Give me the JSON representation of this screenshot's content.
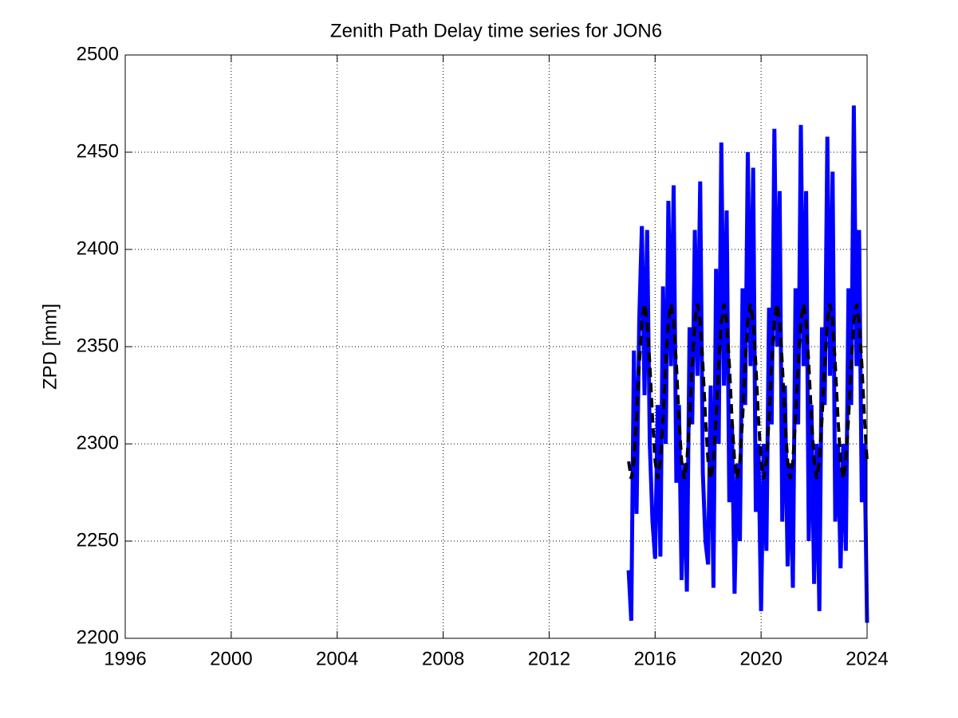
{
  "chart_data": {
    "type": "line",
    "title": "Zenith Path Delay time series for JON6",
    "y_label": "ZPD [mm]",
    "x": [
      2015.0,
      2015.1,
      2015.2,
      2015.3,
      2015.4,
      2015.5,
      2015.6,
      2015.7,
      2015.8,
      2015.9,
      2016.0,
      2016.1,
      2016.2,
      2016.3,
      2016.4,
      2016.5,
      2016.6,
      2016.7,
      2016.8,
      2016.9,
      2017.0,
      2017.1,
      2017.2,
      2017.3,
      2017.4,
      2017.5,
      2017.6,
      2017.7,
      2017.8,
      2017.9,
      2018.0,
      2018.1,
      2018.2,
      2018.3,
      2018.4,
      2018.5,
      2018.6,
      2018.7,
      2018.8,
      2018.9,
      2019.0,
      2019.1,
      2019.2,
      2019.3,
      2019.4,
      2019.5,
      2019.6,
      2019.7,
      2019.8,
      2019.9,
      2020.0,
      2020.1,
      2020.2,
      2020.3,
      2020.4,
      2020.5,
      2020.6,
      2020.7,
      2020.8,
      2020.9,
      2021.0,
      2021.1,
      2021.2,
      2021.3,
      2021.4,
      2021.5,
      2021.6,
      2021.7,
      2021.8,
      2021.9,
      2022.0,
      2022.1,
      2022.2,
      2022.3,
      2022.4,
      2022.5,
      2022.6,
      2022.7,
      2022.8,
      2022.9,
      2023.0,
      2023.1,
      2023.2,
      2023.3,
      2023.4,
      2023.5,
      2023.6,
      2023.7,
      2023.8,
      2023.9,
      2024.0
    ],
    "series": [
      {
        "color": "#0000ff",
        "style": "solid",
        "width": 5,
        "values": [
          2235,
          2209,
          2348,
          2264,
          2364,
          2412,
          2325,
          2410,
          2300,
          2260,
          2241,
          2320,
          2242,
          2381,
          2300,
          2425,
          2340,
          2433,
          2280,
          2320,
          2230,
          2290,
          2224,
          2360,
          2310,
          2410,
          2335,
          2435,
          2285,
          2250,
          2238,
          2330,
          2226,
          2390,
          2300,
          2455,
          2330,
          2420,
          2270,
          2310,
          2223,
          2290,
          2250,
          2380,
          2320,
          2450,
          2340,
          2442,
          2265,
          2300,
          2214,
          2300,
          2245,
          2370,
          2310,
          2462,
          2350,
          2430,
          2260,
          2330,
          2237,
          2290,
          2226,
          2380,
          2310,
          2464,
          2340,
          2430,
          2250,
          2320,
          2228,
          2300,
          2214,
          2360,
          2320,
          2458,
          2335,
          2440,
          2260,
          2300,
          2236,
          2300,
          2245,
          2380,
          2320,
          2474,
          2340,
          2410,
          2270,
          2300,
          2208
        ]
      },
      {
        "color": "#000000",
        "style": "dashed",
        "width": 4,
        "values": [
          2291,
          2282,
          2291,
          2313,
          2341,
          2363,
          2372,
          2363,
          2341,
          2313,
          2291,
          2282,
          2291,
          2313,
          2341,
          2363,
          2372,
          2363,
          2341,
          2313,
          2291,
          2282,
          2291,
          2313,
          2341,
          2363,
          2372,
          2363,
          2341,
          2313,
          2291,
          2282,
          2291,
          2313,
          2341,
          2363,
          2372,
          2363,
          2341,
          2313,
          2291,
          2282,
          2291,
          2313,
          2341,
          2363,
          2372,
          2363,
          2341,
          2313,
          2291,
          2282,
          2291,
          2313,
          2341,
          2363,
          2372,
          2363,
          2341,
          2313,
          2291,
          2282,
          2291,
          2313,
          2341,
          2363,
          2372,
          2363,
          2341,
          2313,
          2291,
          2282,
          2291,
          2313,
          2341,
          2363,
          2372,
          2363,
          2341,
          2313,
          2291,
          2282,
          2291,
          2313,
          2341,
          2363,
          2372,
          2363,
          2341,
          2313,
          2291
        ]
      }
    ],
    "xlim": [
      1996,
      2024
    ],
    "xticks": [
      1996,
      2000,
      2004,
      2008,
      2012,
      2016,
      2020,
      2024
    ],
    "ylim": [
      2200,
      2500
    ],
    "yticks": [
      2200,
      2250,
      2300,
      2350,
      2400,
      2450,
      2500
    ],
    "grid": true
  }
}
